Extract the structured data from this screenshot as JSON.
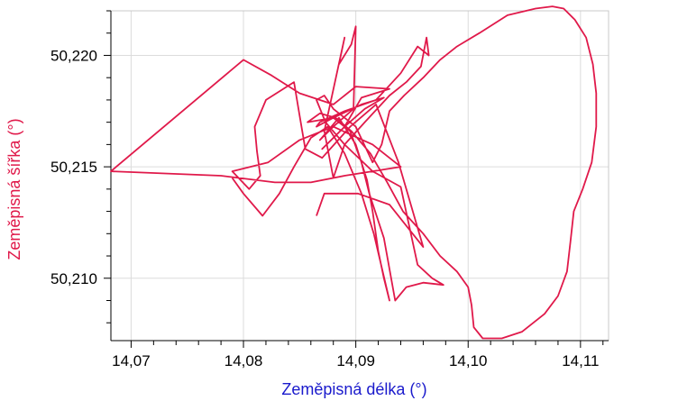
{
  "chart_data": {
    "type": "line",
    "xlabel": "Zeměpisná délka (°)",
    "ylabel": "Zeměpisná šířka (°)",
    "xlabel_color": "#1a1acc",
    "ylabel_color": "#e0194a",
    "line_color": "#e0194a",
    "grid": true,
    "xlim": [
      14.0682,
      14.1125
    ],
    "ylim": [
      50.2072,
      50.222
    ],
    "x_ticks": [
      "14,07",
      "14,08",
      "14,09",
      "14,10",
      "14,11"
    ],
    "y_ticks": [
      "50,210",
      "50,215",
      "50,220"
    ],
    "x_tick_values": [
      14.07,
      14.08,
      14.09,
      14.1,
      14.11
    ],
    "y_tick_values": [
      50.21,
      50.215,
      50.22
    ],
    "series": [
      {
        "points": [
          [
            14.0865,
            50.2128
          ],
          [
            14.0872,
            50.2138
          ],
          [
            14.0885,
            50.2138
          ],
          [
            14.0902,
            50.2138
          ],
          [
            14.093,
            50.2133
          ],
          [
            14.096,
            50.2114
          ],
          [
            14.0938,
            50.2152
          ],
          [
            14.0918,
            50.2178
          ],
          [
            14.0895,
            50.2168
          ],
          [
            14.087,
            50.2154
          ],
          [
            14.0855,
            50.2158
          ],
          [
            14.085,
            50.2173
          ],
          [
            14.0845,
            50.2188
          ],
          [
            14.082,
            50.218
          ],
          [
            14.081,
            50.2168
          ],
          [
            14.0812,
            50.2157
          ],
          [
            14.0815,
            50.2146
          ],
          [
            14.0805,
            50.214
          ],
          [
            14.079,
            50.2148
          ],
          [
            14.0822,
            50.2152
          ],
          [
            14.085,
            50.2162
          ],
          [
            14.088,
            50.2168
          ],
          [
            14.0898,
            50.2176
          ],
          [
            14.09,
            50.2213
          ],
          [
            14.0896,
            50.2205
          ],
          [
            14.0885,
            50.2196
          ],
          [
            14.089,
            50.2208
          ],
          [
            14.0878,
            50.218
          ],
          [
            14.0872,
            50.2166
          ],
          [
            14.088,
            50.2145
          ],
          [
            14.089,
            50.216
          ],
          [
            14.0915,
            50.2148
          ],
          [
            14.094,
            50.2141
          ],
          [
            14.0955,
            50.2106
          ],
          [
            14.0968,
            50.21
          ],
          [
            14.0978,
            50.2097
          ],
          [
            14.096,
            50.2098
          ],
          [
            14.0945,
            50.2096
          ],
          [
            14.0935,
            50.209
          ],
          [
            14.0925,
            50.2118
          ],
          [
            14.0912,
            50.2138
          ],
          [
            14.0905,
            50.2152
          ],
          [
            14.0895,
            50.2166
          ],
          [
            14.088,
            50.2172
          ],
          [
            14.0865,
            50.2168
          ],
          [
            14.0868,
            50.217
          ],
          [
            14.089,
            50.2175
          ],
          [
            14.0918,
            50.218
          ],
          [
            14.094,
            50.2192
          ],
          [
            14.0955,
            50.2204
          ],
          [
            14.0965,
            50.22
          ],
          [
            14.0963,
            50.2208
          ],
          [
            14.0958,
            50.2195
          ],
          [
            14.0945,
            50.2188
          ],
          [
            14.093,
            50.2182
          ],
          [
            14.0908,
            50.217
          ],
          [
            14.089,
            50.216
          ],
          [
            14.0873,
            50.217
          ],
          [
            14.0865,
            50.218
          ],
          [
            14.0872,
            50.2182
          ],
          [
            14.088,
            50.2176
          ],
          [
            14.09,
            50.2168
          ],
          [
            14.0915,
            50.2152
          ],
          [
            14.0923,
            50.216
          ],
          [
            14.093,
            50.2175
          ],
          [
            14.0943,
            50.2182
          ],
          [
            14.096,
            50.219
          ],
          [
            14.0975,
            50.2198
          ],
          [
            14.099,
            50.2204
          ],
          [
            14.101,
            50.221
          ],
          [
            14.1035,
            50.2218
          ],
          [
            14.106,
            50.2221
          ],
          [
            14.1075,
            50.2222
          ],
          [
            14.1085,
            50.2221
          ],
          [
            14.1095,
            50.2216
          ],
          [
            14.1105,
            50.2208
          ],
          [
            14.1111,
            50.2196
          ],
          [
            14.1114,
            50.2183
          ],
          [
            14.1114,
            50.2168
          ],
          [
            14.111,
            50.2152
          ],
          [
            14.1102,
            50.214
          ],
          [
            14.1094,
            50.213
          ],
          [
            14.1091,
            50.2116
          ],
          [
            14.1088,
            50.2103
          ],
          [
            14.108,
            50.2092
          ],
          [
            14.1068,
            50.2084
          ],
          [
            14.1048,
            50.2076
          ],
          [
            14.103,
            50.2073
          ],
          [
            14.1013,
            50.2073
          ],
          [
            14.1005,
            50.2078
          ],
          [
            14.1003,
            50.2088
          ],
          [
            14.1,
            50.2096
          ],
          [
            14.099,
            50.2103
          ],
          [
            14.0975,
            50.211
          ],
          [
            14.096,
            50.212
          ],
          [
            14.0942,
            50.213
          ],
          [
            14.0928,
            50.2143
          ],
          [
            14.0913,
            50.2156
          ],
          [
            14.0896,
            50.2166
          ],
          [
            14.0882,
            50.2172
          ],
          [
            14.0868,
            50.2174
          ],
          [
            14.0857,
            50.217
          ],
          [
            14.088,
            50.2172
          ],
          [
            14.0905,
            50.2178
          ],
          [
            14.0925,
            50.2181
          ],
          [
            14.0908,
            50.2176
          ],
          [
            14.089,
            50.2168
          ],
          [
            14.087,
            50.2158
          ],
          [
            14.089,
            50.2168
          ],
          [
            14.0905,
            50.2181
          ],
          [
            14.093,
            50.2185
          ],
          [
            14.09,
            50.2186
          ],
          [
            14.088,
            50.2178
          ],
          [
            14.085,
            50.2183
          ],
          [
            14.0825,
            50.2191
          ],
          [
            14.08,
            50.2198
          ],
          [
            14.0682,
            50.2148
          ],
          [
            14.078,
            50.2146
          ],
          [
            14.0828,
            50.2143
          ],
          [
            14.086,
            50.2143
          ],
          [
            14.089,
            50.2146
          ],
          [
            14.094,
            50.215
          ],
          [
            14.0915,
            50.216
          ],
          [
            14.088,
            50.2168
          ],
          [
            14.0868,
            50.2162
          ],
          [
            14.0885,
            50.2172
          ],
          [
            14.09,
            50.216
          ],
          [
            14.091,
            50.2144
          ],
          [
            14.0915,
            50.213
          ],
          [
            14.092,
            50.2112
          ],
          [
            14.0925,
            50.21
          ],
          [
            14.093,
            50.209
          ],
          [
            14.0916,
            50.212
          ],
          [
            14.0905,
            50.2138
          ],
          [
            14.089,
            50.2156
          ],
          [
            14.0875,
            50.2168
          ],
          [
            14.086,
            50.2163
          ],
          [
            14.0845,
            50.215
          ],
          [
            14.0832,
            50.2138
          ],
          [
            14.0817,
            50.2128
          ],
          [
            14.08,
            50.2138
          ],
          [
            14.079,
            50.2145
          ]
        ]
      }
    ]
  }
}
